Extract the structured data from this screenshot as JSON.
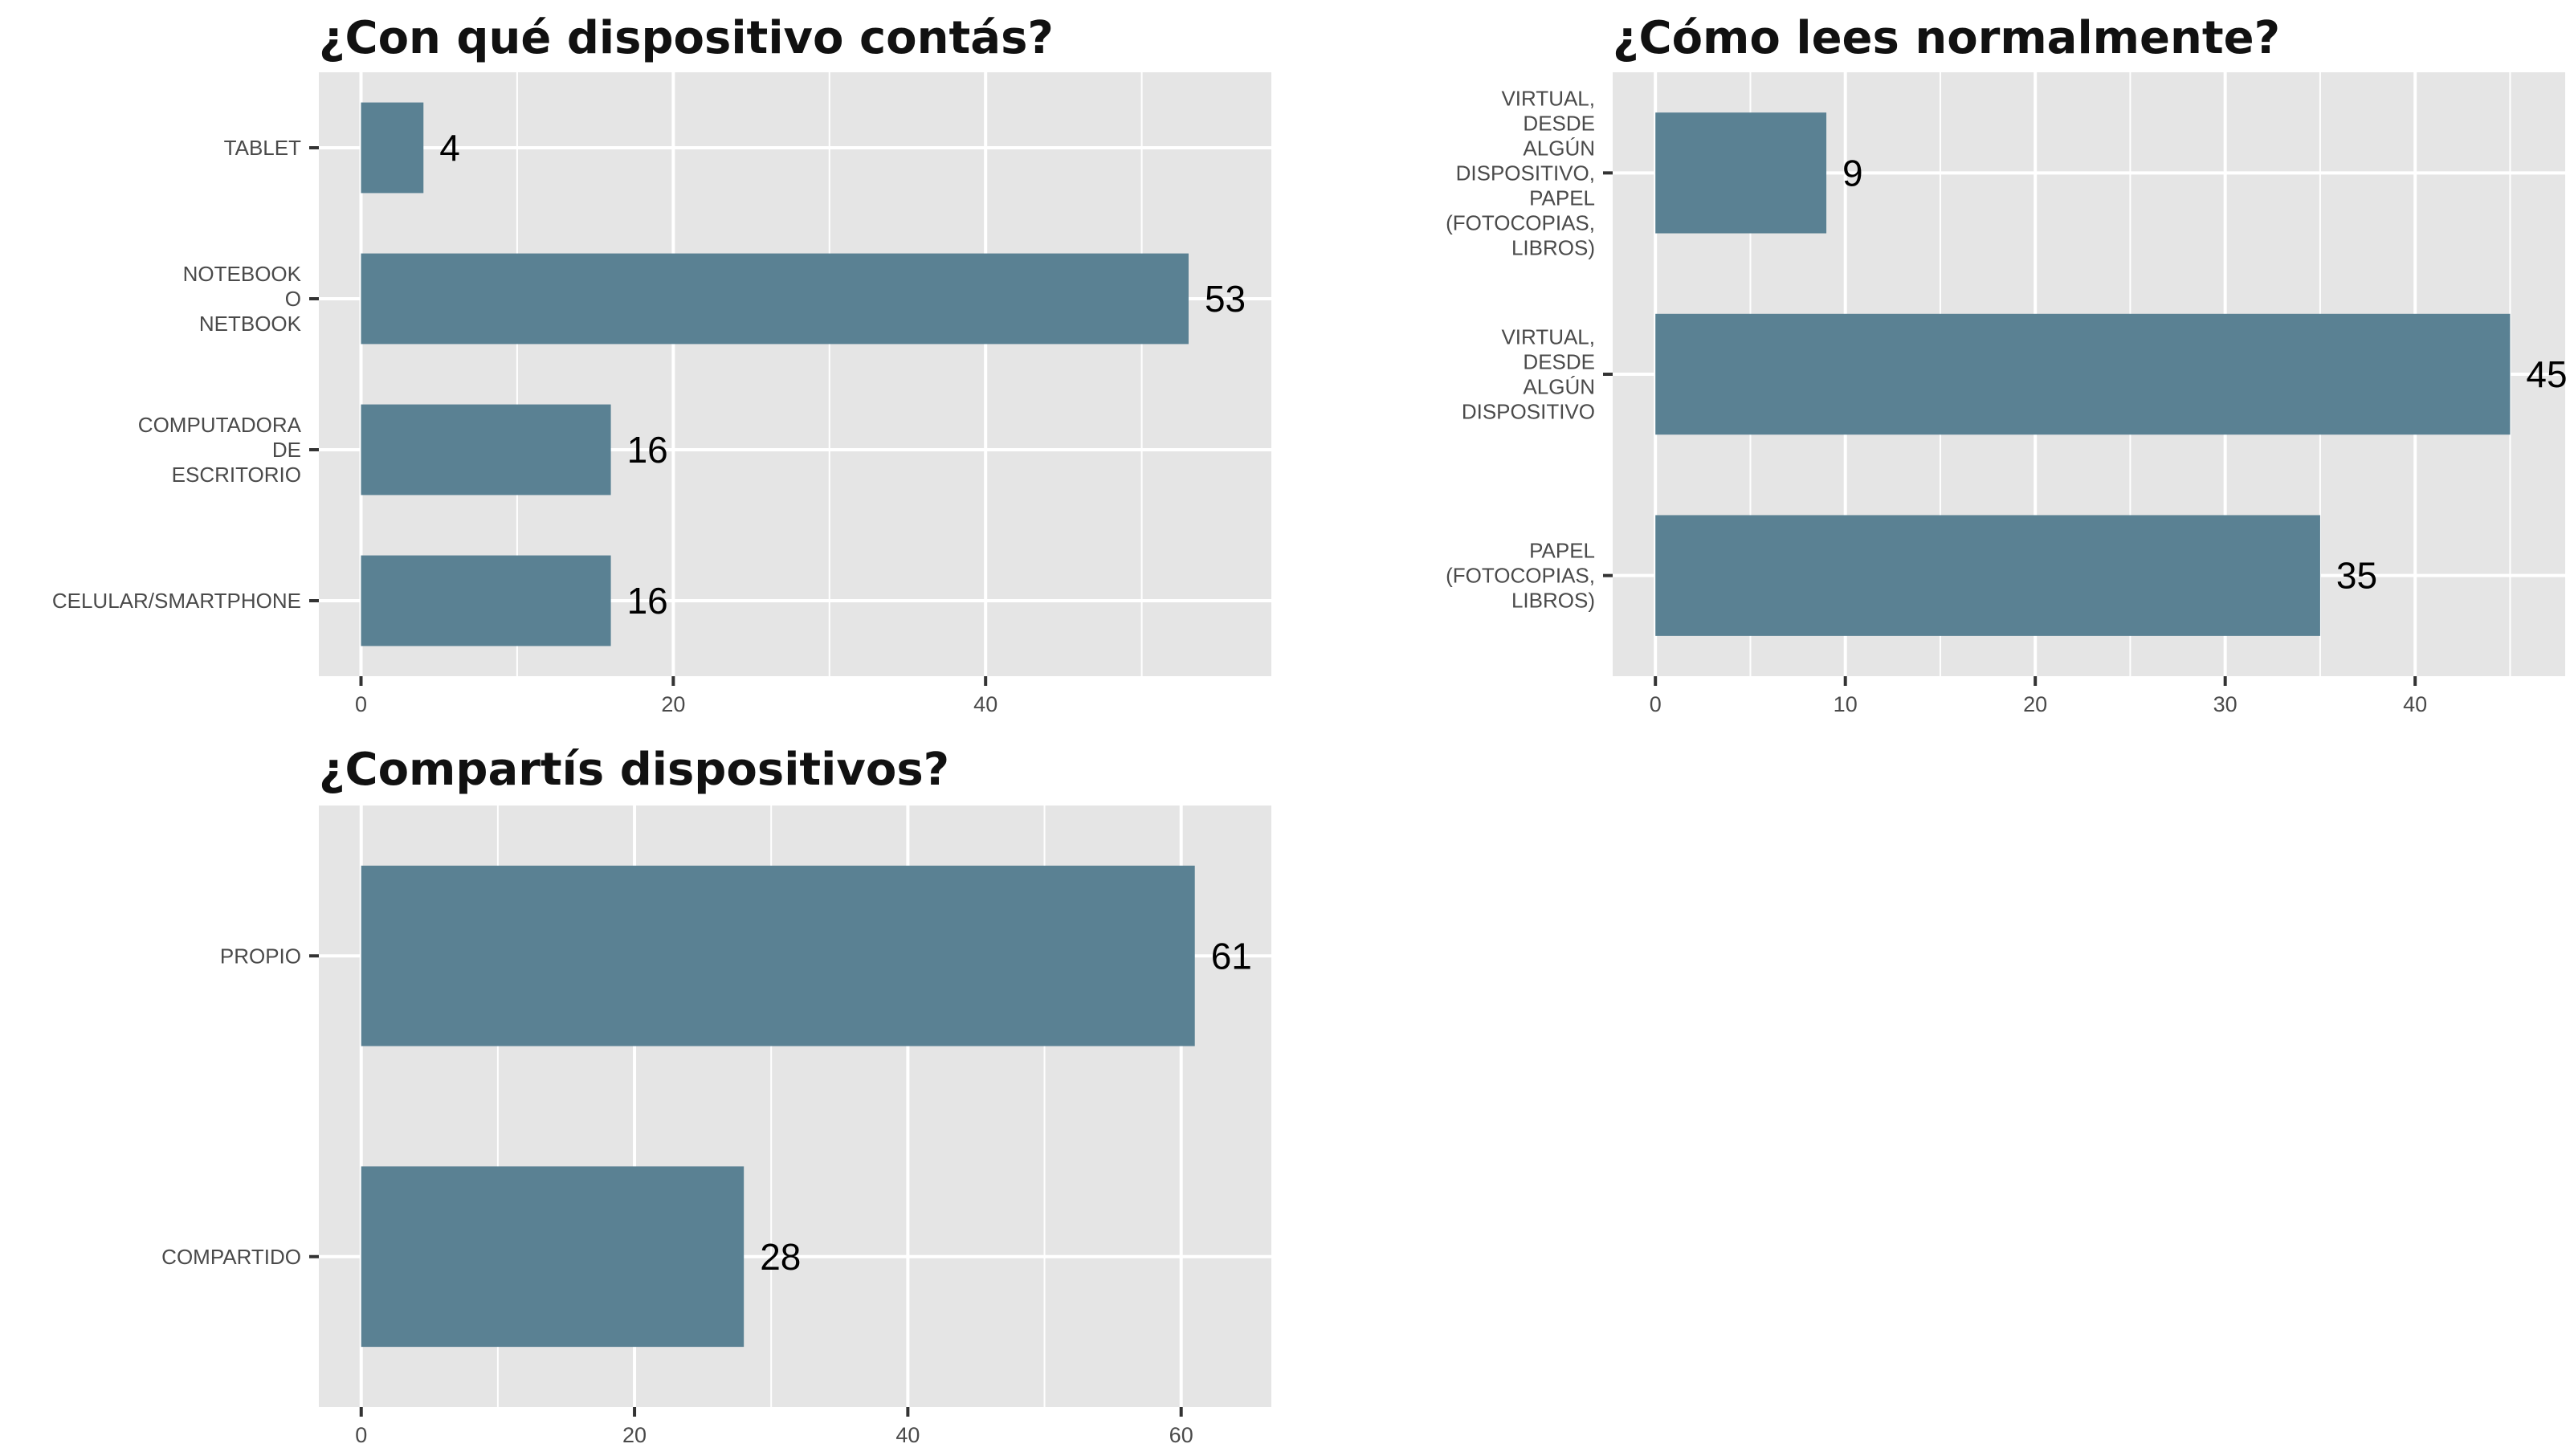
{
  "chart_data": [
    {
      "type": "bar",
      "orientation": "horizontal",
      "title": "¿Con qué dispositivo contás?",
      "categories": [
        [
          "TABLET"
        ],
        [
          "NOTEBOOK",
          "O",
          "NETBOOK"
        ],
        [
          "COMPUTADORA",
          "DE",
          "ESCRITORIO"
        ],
        [
          "CELULAR/SMARTPHONE"
        ]
      ],
      "values": [
        4,
        53,
        16,
        16
      ],
      "xlim": [
        -2.7,
        58.3
      ],
      "xticks": [
        0,
        20,
        40
      ],
      "grid": true,
      "bar_color": "#557d8f"
    },
    {
      "type": "bar",
      "orientation": "horizontal",
      "title": "¿Cómo lees normalmente?",
      "categories": [
        [
          "VIRTUAL,",
          "DESDE",
          "ALGÚN",
          "DISPOSITIVO,",
          "PAPEL",
          "(FOTOCOPIAS,",
          "LIBROS)"
        ],
        [
          "VIRTUAL,",
          "DESDE",
          "ALGÚN",
          "DISPOSITIVO"
        ],
        [
          "PAPEL",
          "(FOTOCOPIAS,",
          "LIBROS)"
        ]
      ],
      "values": [
        9,
        45,
        35
      ],
      "xlim": [
        -2.25,
        47.9
      ],
      "xticks": [
        0,
        10,
        20,
        30,
        40
      ],
      "grid": true,
      "bar_color": "#557d8f"
    },
    {
      "type": "bar",
      "orientation": "horizontal",
      "title": "¿Compartís dispositivos?",
      "categories": [
        [
          "PROPIO"
        ],
        [
          "COMPARTIDO"
        ]
      ],
      "values": [
        61,
        28
      ],
      "xlim": [
        -3.1,
        66.6
      ],
      "xticks": [
        0,
        20,
        40,
        60
      ],
      "grid": true,
      "bar_color": "#557d8f"
    }
  ],
  "colors": {
    "panel_background": "#e5e5e5",
    "grid": "#ffffff",
    "bar": "#557d8f"
  }
}
